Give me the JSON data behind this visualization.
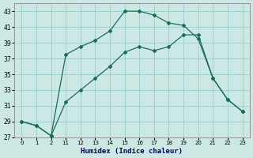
{
  "xlabel": "Humidex (Indice chaleur)",
  "bg_color": "#cce8e4",
  "grid_color": "#99cccc",
  "line_color": "#1a6b5a",
  "ylim": [
    27,
    44
  ],
  "yticks": [
    27,
    29,
    31,
    33,
    35,
    37,
    39,
    41,
    43
  ],
  "xlabels": [
    "0",
    "1",
    "2",
    "11",
    "12",
    "13",
    "14",
    "15",
    "16",
    "17",
    "18",
    "19",
    "20",
    "21",
    "22",
    "23"
  ],
  "series1_y": [
    29.0,
    28.5,
    27.2,
    37.5,
    38.5,
    39.3,
    40.5,
    43.0,
    43.0,
    42.5,
    41.5,
    41.2,
    39.5,
    34.5,
    31.8,
    30.3
  ],
  "series2_y": [
    29.0,
    28.5,
    27.2,
    31.5,
    33.0,
    34.5,
    36.0,
    37.8,
    38.5,
    38.0,
    38.5,
    40.0,
    40.0,
    34.5,
    31.8,
    30.3
  ]
}
